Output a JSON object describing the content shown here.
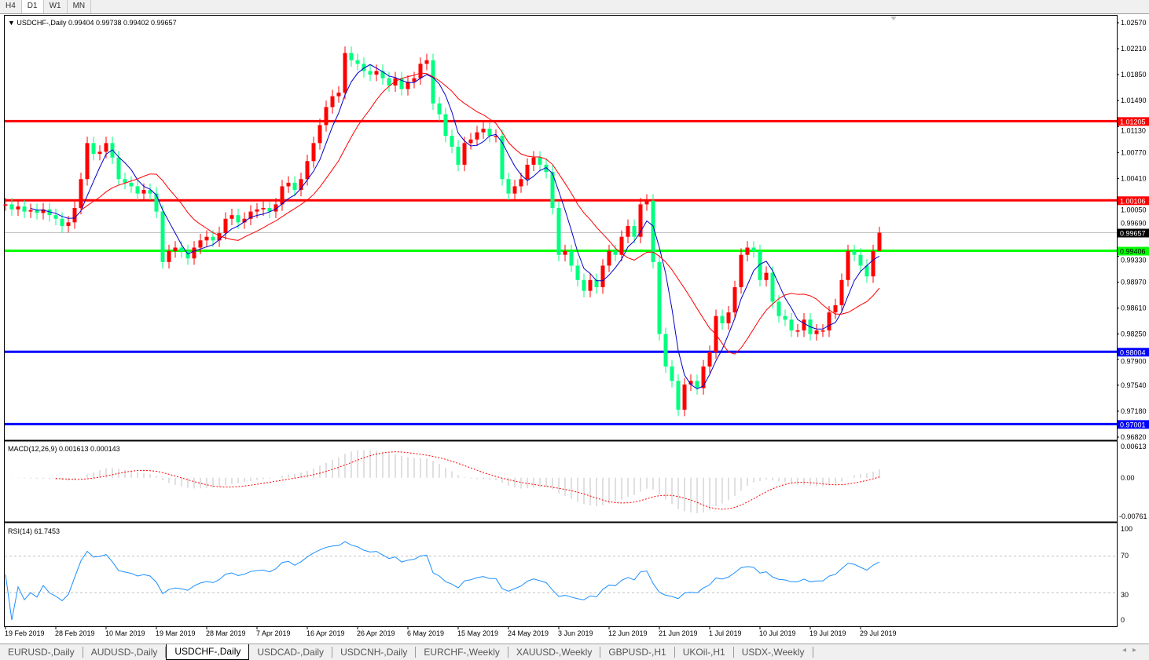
{
  "timeframes": {
    "items": [
      "H4",
      "D1",
      "W1",
      "MN"
    ],
    "active": "D1"
  },
  "header": {
    "symbol": "USDCHF-,Daily",
    "ohlc_text": "0.99404 0.99738 0.99402 0.99657"
  },
  "macd": {
    "label": "MACD(12,26,9) 0.001613 0.000143",
    "axis": [
      "0.00613",
      "0.00",
      "-0.00761"
    ]
  },
  "rsi": {
    "label": "RSI(14) 61.7453",
    "axis": [
      "100",
      "70",
      "30",
      "0"
    ]
  },
  "tabs": [
    "EURUSD-,Daily",
    "AUDUSD-,Daily",
    "USDCHF-,Daily",
    "USDCAD-,Daily",
    "USDCNH-,Daily",
    "EURCHF-,Weekly",
    "XAUUSD-,Weekly",
    "GBPUSD-,H1",
    "UKOil-,H1",
    "USDX-,Weekly"
  ],
  "active_tab": "USDCHF-,Daily",
  "colors": {
    "bull": "#FF0000",
    "bear": "#00FF7F",
    "ma_fast": "#0000CC",
    "ma_slow": "#FF0000",
    "rsi": "#1E90FF",
    "macd_hist": "#C0C0C0",
    "macd_signal": "#FF0000",
    "level_red": "#FF0000",
    "level_green": "#00FF00",
    "level_blue": "#0000FF",
    "bid": "#C0C0C0"
  },
  "chart_data": {
    "type": "candlestick",
    "symbol": "USDCHF-",
    "timeframe": "Daily",
    "ylim": [
      0.9682,
      1.0257
    ],
    "price_ticks": [
      "1.02570",
      "1.02210",
      "1.01850",
      "1.01490",
      "1.01130",
      "1.00770",
      "1.00410",
      "1.00050",
      "0.99690",
      "0.99330",
      "0.98970",
      "0.98610",
      "0.98250",
      "0.97900",
      "0.97540",
      "0.97180",
      "0.96820"
    ],
    "date_ticks": [
      "19 Feb 2019",
      "28 Feb 2019",
      "10 Mar 2019",
      "19 Mar 2019",
      "28 Mar 2019",
      "7 Apr 2019",
      "16 Apr 2019",
      "26 Apr 2019",
      "6 May 2019",
      "15 May 2019",
      "24 May 2019",
      "3 Jun 2019",
      "12 Jun 2019",
      "21 Jun 2019",
      "1 Jul 2019",
      "10 Jul 2019",
      "19 Jul 2019",
      "29 Jul 2019"
    ],
    "close": [
      1.0005,
      0.9998,
      1.0002,
      0.9995,
      0.9997,
      0.9993,
      0.9998,
      0.999,
      0.9985,
      0.9975,
      0.998,
      1.0,
      1.004,
      1.009,
      1.0075,
      1.0078,
      1.009,
      1.007,
      1.004,
      1.0035,
      1.003,
      1.002,
      1.0025,
      1.002,
      0.9995,
      0.9925,
      0.994,
      0.9945,
      0.994,
      0.993,
      0.9945,
      0.9955,
      0.996,
      0.9955,
      0.9965,
      0.9985,
      0.999,
      0.998,
      0.9985,
      0.9995,
      0.9998,
      1.0,
      0.9995,
      1.0005,
      1.003,
      1.0035,
      1.0025,
      1.004,
      1.0065,
      1.009,
      1.0115,
      1.014,
      1.0155,
      1.016,
      1.0215,
      1.0205,
      1.02,
      1.019,
      1.0185,
      1.019,
      1.018,
      1.017,
      1.018,
      1.0165,
      1.0175,
      1.018,
      1.02,
      1.0205,
      1.0145,
      1.013,
      1.01,
      1.0085,
      1.006,
      1.009,
      1.0095,
      1.0105,
      1.011,
      1.01,
      1.01,
      1.004,
      1.002,
      1.003,
      1.004,
      1.006,
      1.007,
      1.006,
      1.005,
      1.0,
      0.9935,
      0.994,
      0.992,
      0.99,
      0.9885,
      0.99,
      0.989,
      0.992,
      0.994,
      0.9935,
      0.996,
      0.9975,
      0.996,
      1.0005,
      1.001,
      0.9925,
      0.9825,
      0.978,
      0.976,
      0.972,
      0.9755,
      0.976,
      0.975,
      0.978,
      0.98,
      0.985,
      0.984,
      0.9855,
      0.989,
      0.9935,
      0.9945,
      0.994,
      0.99,
      0.991,
      0.987,
      0.985,
      0.9845,
      0.983,
      0.983,
      0.9845,
      0.9825,
      0.983,
      0.983,
      0.9855,
      0.9865,
      0.99,
      0.994,
      0.9935,
      0.992,
      0.9905,
      0.994,
      0.99657
    ],
    "last_bar": {
      "open": 0.99404,
      "high": 0.99738,
      "low": 0.99402,
      "close": 0.99657
    },
    "levels": [
      {
        "price": 1.01205,
        "label": "1.01205",
        "color": "red"
      },
      {
        "price": 1.00106,
        "label": "1.00106",
        "color": "red"
      },
      {
        "price": 0.99657,
        "label": "0.99657",
        "color": "bid"
      },
      {
        "price": 0.99406,
        "label": "0.99406",
        "color": "green"
      },
      {
        "price": 0.98004,
        "label": "0.98004",
        "color": "blue"
      },
      {
        "price": 0.97001,
        "label": "0.97001",
        "color": "blue"
      }
    ],
    "macd_ylim": [
      -0.00761,
      0.00613
    ],
    "rsi_ylim": [
      0,
      100
    ],
    "rsi_levels": [
      70,
      30
    ]
  }
}
